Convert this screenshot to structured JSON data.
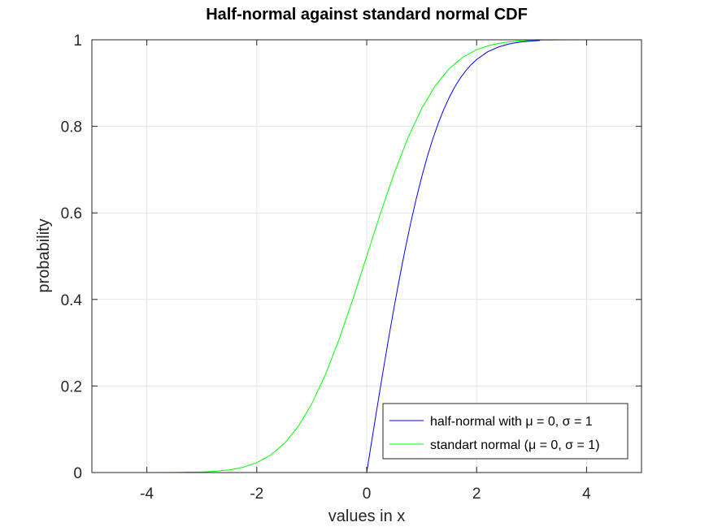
{
  "chart_data": {
    "type": "line",
    "title": "Half-normal against standard normal CDF",
    "xlabel": "values in x",
    "ylabel": "probability",
    "xlim": [
      -5,
      5
    ],
    "ylim": [
      0,
      1
    ],
    "xticks": [
      -4,
      -2,
      0,
      2,
      4
    ],
    "xtick_labels": [
      "-4",
      "-2",
      "0",
      "2",
      "4"
    ],
    "yticks": [
      0,
      0.2,
      0.4,
      0.6,
      0.8,
      1
    ],
    "ytick_labels": [
      "0",
      "0.2",
      "0.4",
      "0.6",
      "0.8",
      "1"
    ],
    "grid": true,
    "legend_position": "bottom-right",
    "series": [
      {
        "name": "half-normal with μ = 0, σ = 1",
        "color": "#0000ff",
        "x": [
          -3.25,
          -2,
          -1,
          0,
          0.1,
          0.2,
          0.3,
          0.4,
          0.5,
          0.6,
          0.7,
          0.8,
          0.9,
          1.0,
          1.1,
          1.2,
          1.3,
          1.4,
          1.5,
          1.6,
          1.7,
          1.8,
          1.9,
          2.0,
          2.2,
          2.4,
          2.6,
          2.8,
          3.0,
          3.15
        ],
        "y": [
          0,
          0,
          0,
          0,
          0.0797,
          0.1585,
          0.2358,
          0.3108,
          0.3829,
          0.4515,
          0.5161,
          0.5763,
          0.6319,
          0.6827,
          0.7287,
          0.7699,
          0.8064,
          0.8385,
          0.8664,
          0.8904,
          0.9109,
          0.9281,
          0.9426,
          0.9545,
          0.9722,
          0.9836,
          0.9907,
          0.9949,
          0.9973,
          0.9984
        ]
      },
      {
        "name": "standart normal (μ = 0, σ = 1)",
        "color": "#00ff00",
        "x": [
          -5,
          -4.5,
          -4,
          -3.5,
          -3,
          -2.75,
          -2.5,
          -2.25,
          -2,
          -1.75,
          -1.5,
          -1.25,
          -1,
          -0.75,
          -0.5,
          -0.25,
          0,
          0.25,
          0.5,
          0.75,
          1,
          1.25,
          1.5,
          1.75,
          2,
          2.25,
          2.5,
          2.75,
          3,
          3.5,
          4,
          4.5,
          5
        ],
        "y": [
          0,
          0,
          0,
          0.0002,
          0.0013,
          0.003,
          0.0062,
          0.0122,
          0.0228,
          0.0401,
          0.0668,
          0.1056,
          0.1587,
          0.2266,
          0.3085,
          0.4013,
          0.5,
          0.5987,
          0.6915,
          0.7734,
          0.8413,
          0.8944,
          0.9332,
          0.9599,
          0.9772,
          0.9878,
          0.9938,
          0.997,
          0.9987,
          0.9998,
          1,
          1,
          1
        ]
      }
    ]
  }
}
